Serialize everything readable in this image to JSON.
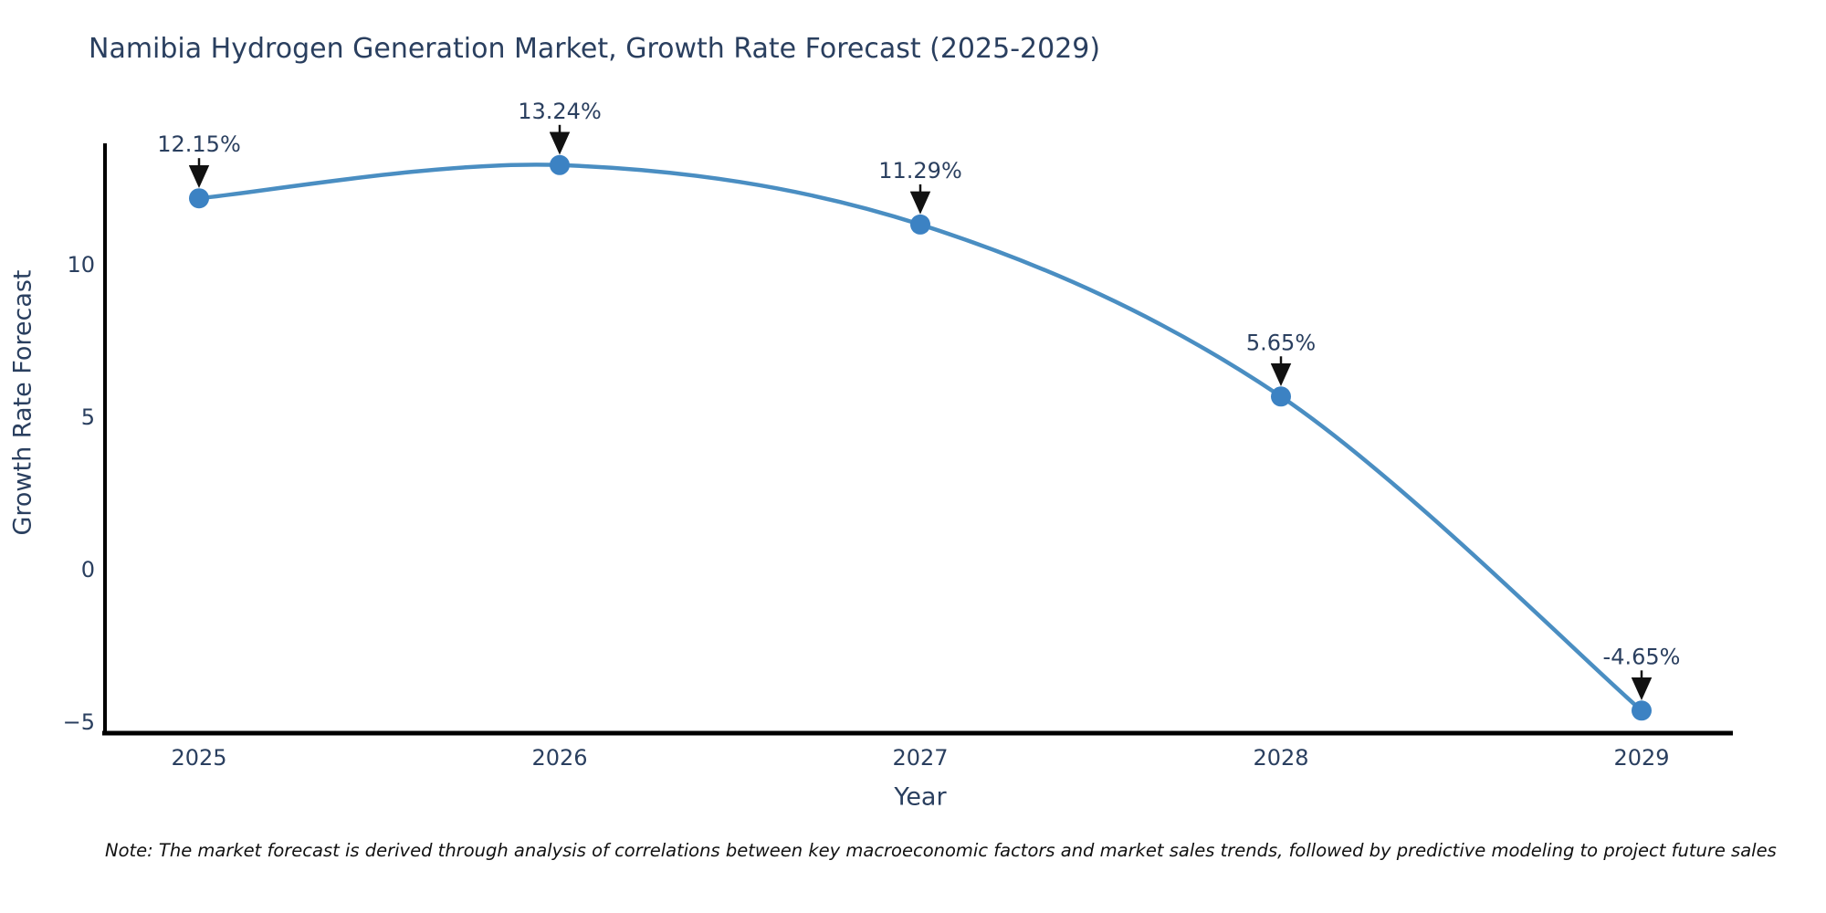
{
  "chart_data": {
    "type": "line",
    "title": "Namibia Hydrogen Generation Market, Growth Rate Forecast (2025-2029)",
    "xlabel": "Year",
    "ylabel": "Growth Rate Forecast",
    "x": [
      2025,
      2026,
      2027,
      2028,
      2029
    ],
    "series": [
      {
        "name": "Growth Rate Forecast",
        "values": [
          12.15,
          13.24,
          11.29,
          5.65,
          -4.65
        ]
      }
    ],
    "point_labels": [
      "12.15%",
      "13.24%",
      "11.29%",
      "5.65%",
      "-4.65%"
    ],
    "yticks": {
      "values": [
        10,
        5,
        0,
        -5
      ],
      "labels": [
        "10",
        "5",
        "0",
        "−5"
      ]
    },
    "xtick_labels": [
      "2025",
      "2026",
      "2027",
      "2028",
      "2029"
    ],
    "ylim": [
      -5.5,
      13.95
    ],
    "grid": false,
    "legend": "none",
    "annotation_style": "value labels above points with black down arrows",
    "colors": {
      "line": "#4a8ec2",
      "marker": "#3c82c3",
      "arrow": "#111111",
      "axis": "#000000",
      "text": "#2a3f5f"
    },
    "note": "Note: The market forecast is derived through analysis of correlations between key macroeconomic factors and market sales trends, followed by predictive modeling to project future sales"
  }
}
